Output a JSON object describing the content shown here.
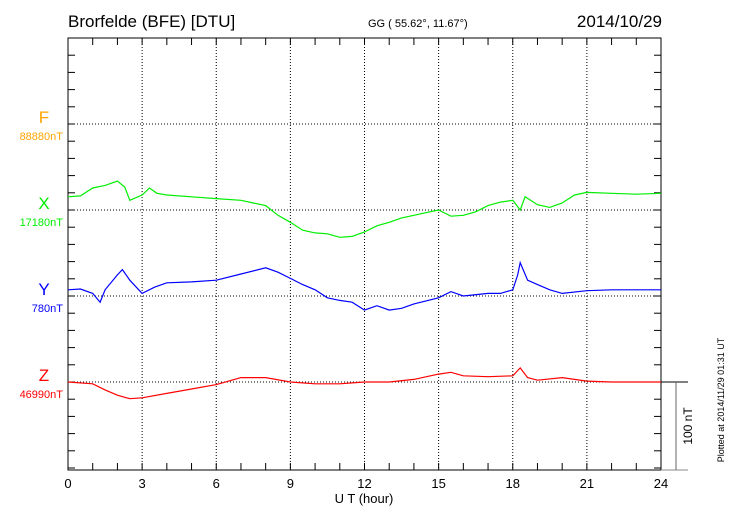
{
  "header": {
    "station": "Brorfelde (BFE)  [DTU]",
    "coords": "GG ( 55.62°,  11.67°)",
    "date": "2014/10/29"
  },
  "plotted_note": "Plotted at 2014/11/29 01:31  UT",
  "scale_label": "100 nT",
  "chart_data": {
    "type": "line",
    "title": "Brorfelde (BFE)  [DTU]",
    "xlabel": "U T (hour)",
    "xlim": [
      0,
      24
    ],
    "xticks": [
      "0",
      "3",
      "6",
      "9",
      "12",
      "15",
      "18",
      "21",
      "24"
    ],
    "xtick_values": [
      0,
      3,
      6,
      9,
      12,
      15,
      18,
      21,
      24
    ],
    "scale_nT": 100,
    "series": [
      {
        "name": "F",
        "baseline_label": "88880nT",
        "color": "#ffa500",
        "hours": [],
        "offset_nT": []
      },
      {
        "name": "X",
        "baseline_label": "17180nT",
        "color": "#00ee00",
        "hours": [
          0,
          0.5,
          1,
          1.5,
          2,
          2.3,
          2.5,
          3,
          3.3,
          3.6,
          4,
          5,
          6,
          7,
          7.5,
          8,
          8.5,
          9,
          9.5,
          10,
          10.5,
          11,
          11.5,
          12,
          12.5,
          13,
          13.5,
          14,
          14.5,
          15,
          15.5,
          16,
          16.5,
          17,
          17.5,
          18,
          18.3,
          18.5,
          19,
          19.5,
          20,
          20.5,
          21,
          22,
          23,
          24
        ],
        "offset_nT": [
          15,
          16,
          25,
          28,
          33,
          26,
          11,
          17,
          25,
          19,
          17,
          15,
          13,
          11,
          8,
          5,
          -6,
          -14,
          -23,
          -26,
          -27,
          -31,
          -30,
          -25,
          -18,
          -14,
          -9,
          -6,
          -3,
          0,
          -7,
          -6,
          -2,
          5,
          9,
          11,
          0,
          15,
          6,
          3,
          8,
          17,
          20,
          19,
          18,
          19
        ]
      },
      {
        "name": "Y",
        "baseline_label": "780nT",
        "color": "#0000ff",
        "hours": [
          0,
          0.5,
          1,
          1.3,
          1.5,
          2,
          2.2,
          2.5,
          3,
          3.5,
          4,
          5,
          6,
          7,
          8,
          8.5,
          9,
          9.5,
          10,
          10.5,
          11,
          11.5,
          12,
          12.5,
          13,
          13.5,
          14,
          15,
          15.5,
          16,
          17,
          17.5,
          18,
          18.2,
          18.3,
          18.6,
          19,
          19.5,
          20,
          21,
          22,
          23,
          24
        ],
        "offset_nT": [
          7,
          8,
          3,
          -7,
          7,
          24,
          30,
          18,
          3,
          10,
          15,
          16,
          18,
          25,
          32,
          27,
          20,
          13,
          7,
          -2,
          -5,
          -7,
          -16,
          -11,
          -16,
          -14,
          -9,
          -2,
          5,
          0,
          3,
          3,
          7,
          24,
          38,
          18,
          13,
          7,
          3,
          6,
          7,
          7,
          7
        ]
      },
      {
        "name": "Z",
        "baseline_label": "46990nT",
        "color": "#ff0000",
        "hours": [
          0,
          1,
          1.5,
          2,
          2.5,
          3,
          4,
          5,
          6,
          7,
          8,
          9,
          10,
          11,
          12,
          13,
          14,
          15,
          15.5,
          16,
          17,
          18,
          18.3,
          18.6,
          19,
          20,
          21,
          22,
          24
        ],
        "offset_nT": [
          0,
          -2,
          -9,
          -15,
          -19,
          -18,
          -13,
          -8,
          -3,
          5,
          5,
          0,
          -2,
          -2,
          0,
          0,
          3,
          9,
          11,
          7,
          6,
          7,
          16,
          5,
          2,
          5,
          1,
          0,
          0
        ]
      }
    ]
  }
}
